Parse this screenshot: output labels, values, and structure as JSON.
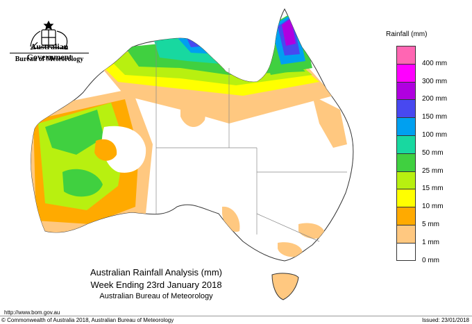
{
  "header": {
    "government": "Australian Government",
    "bureau": "Bureau of Meteorology"
  },
  "legend": {
    "title": "Rainfall (mm)",
    "entries": [
      {
        "label": "400 mm",
        "color": "#ff66b3"
      },
      {
        "label": "300 mm",
        "color": "#ff00ff"
      },
      {
        "label": "200 mm",
        "color": "#b000e0"
      },
      {
        "label": "150 mm",
        "color": "#4848f0"
      },
      {
        "label": "100 mm",
        "color": "#00a0f0"
      },
      {
        "label": "50 mm",
        "color": "#18d8a0"
      },
      {
        "label": "25 mm",
        "color": "#40d040"
      },
      {
        "label": "15 mm",
        "color": "#b8f010"
      },
      {
        "label": "10 mm",
        "color": "#ffff00"
      },
      {
        "label": "5 mm",
        "color": "#ffaa00"
      },
      {
        "label": "1 mm",
        "color": "#ffc880"
      },
      {
        "label": "0 mm",
        "color": "#ffffff"
      }
    ]
  },
  "caption": {
    "line1": "Australian Rainfall Analysis (mm)",
    "line2": "Week Ending 23rd January 2018",
    "line3": "Australian Bureau of Meteorology"
  },
  "footer": {
    "url": "http://www.bom.gov.au",
    "copyright": "© Commonwealth of Australia 2018, Australian Bureau of Meteorology",
    "issued": "Issued: 23/01/2018"
  }
}
